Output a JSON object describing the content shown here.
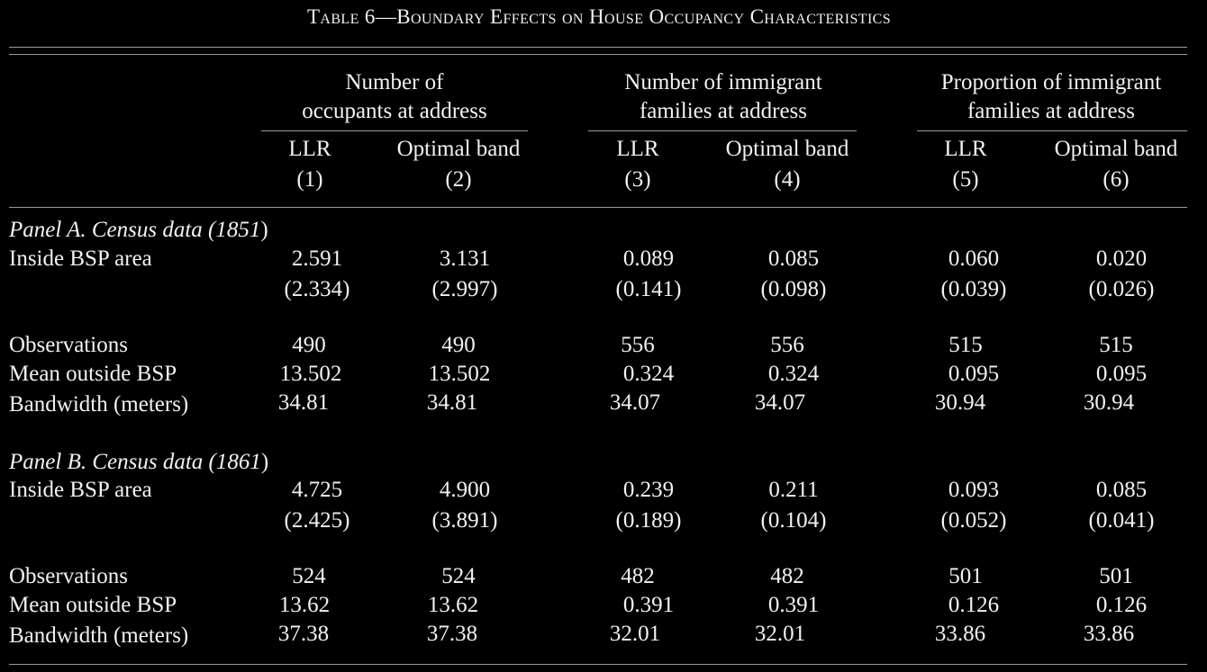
{
  "title": "Table 6—Boundary Effects on House Occupancy Characteristics",
  "groups": [
    {
      "line1": "Number of",
      "line2": "occupants at address"
    },
    {
      "line1": "Number of immigrant",
      "line2": "families at address"
    },
    {
      "line1": "Proportion of immigrant",
      "line2": "families at address"
    }
  ],
  "columns": [
    {
      "label": "LLR",
      "number": "(1)"
    },
    {
      "label": "Optimal band",
      "number": "(2)"
    },
    {
      "label": "LLR",
      "number": "(3)"
    },
    {
      "label": "Optimal band",
      "number": "(4)"
    },
    {
      "label": "LLR",
      "number": "(5)"
    },
    {
      "label": "Optimal band",
      "number": "(6)"
    }
  ],
  "panels": [
    {
      "title_main": "Panel A. Census data (",
      "title_year": "1851",
      "title_end": ")",
      "coef_label": "Inside BSP area",
      "coef": [
        "2.591",
        "3.131",
        "0.089",
        "0.085",
        "0.060",
        "0.020"
      ],
      "se": [
        "(2.334)",
        "(2.997)",
        "(0.141)",
        "(0.098)",
        "(0.039)",
        "(0.026)"
      ],
      "obs_label": "Observations",
      "obs": [
        "490",
        "490",
        "556",
        "556",
        "515",
        "515"
      ],
      "mean_label": "Mean outside BSP",
      "mean": [
        "13.502",
        "13.502",
        "0.324",
        "0.324",
        "0.095",
        "0.095"
      ],
      "bw_label": "Bandwidth (meters)",
      "bw": [
        "34.81",
        "34.81",
        "34.07",
        "34.07",
        "30.94",
        "30.94"
      ]
    },
    {
      "title_main": "Panel B. Census data (",
      "title_year": "1861",
      "title_end": ")",
      "coef_label": "Inside BSP area",
      "coef": [
        "4.725",
        "4.900",
        "0.239",
        "0.211",
        "0.093",
        "0.085"
      ],
      "se": [
        "(2.425)",
        "(3.891)",
        "(0.189)",
        "(0.104)",
        "(0.052)",
        "(0.041)"
      ],
      "obs_label": "Observations",
      "obs": [
        "524",
        "524",
        "482",
        "482",
        "501",
        "501"
      ],
      "mean_label": "Mean outside BSP",
      "mean": [
        "13.62",
        "13.62",
        "0.391",
        "0.391",
        "0.126",
        "0.126"
      ],
      "bw_label": "Bandwidth (meters)",
      "bw": [
        "37.38",
        "37.38",
        "32.01",
        "32.01",
        "33.86",
        "33.86"
      ]
    }
  ]
}
